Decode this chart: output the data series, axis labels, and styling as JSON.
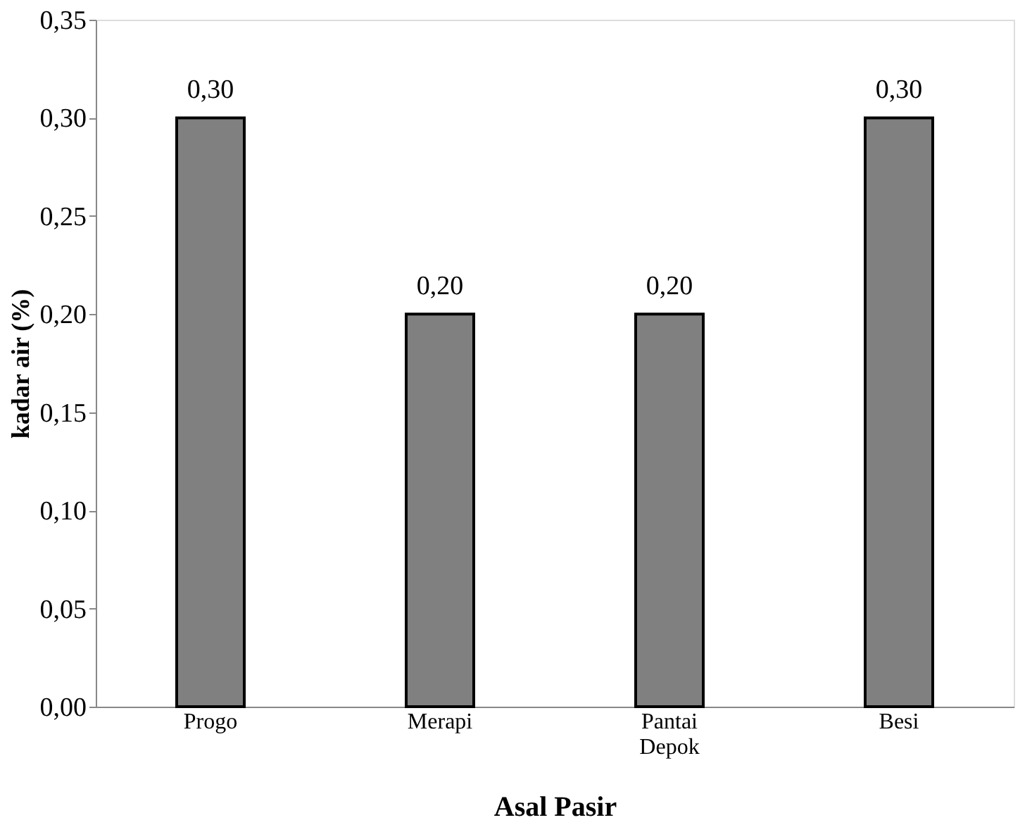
{
  "chart_data": {
    "type": "bar",
    "xlabel": "Asal Pasir",
    "ylabel": "kadar air (%)",
    "categories": [
      "Progo",
      "Merapi",
      "Pantai Depok",
      "Besi"
    ],
    "values": [
      0.3,
      0.2,
      0.2,
      0.3
    ],
    "value_labels": [
      "0,30",
      "0,20",
      "0,20",
      "0,30"
    ],
    "colors": [
      "#808080",
      "#808080",
      "#808080",
      "#808080"
    ],
    "ylim": [
      0,
      0.35
    ],
    "yticks": [
      {
        "value": 0,
        "label": "0,00"
      },
      {
        "value": 0.05,
        "label": "0,05"
      },
      {
        "value": 0.1,
        "label": "0,10"
      },
      {
        "value": 0.15,
        "label": "0,15"
      },
      {
        "value": 0.2,
        "label": "0,20"
      },
      {
        "value": 0.25,
        "label": "0,25"
      },
      {
        "value": 0.3,
        "label": "0,30"
      },
      {
        "value": 0.35,
        "label": "0,35"
      }
    ],
    "grid": false
  }
}
